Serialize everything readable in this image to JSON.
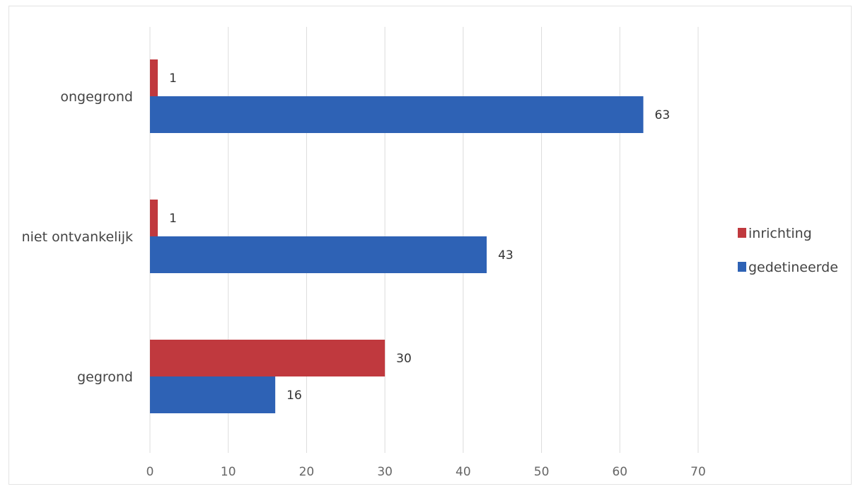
{
  "chart_data": {
    "type": "bar",
    "orientation": "horizontal",
    "categories": [
      "ongegrond",
      "niet ontvankelijk",
      "gegrond"
    ],
    "series": [
      {
        "name": "inrichting",
        "values": [
          1,
          1,
          30
        ],
        "color": "#c0393e"
      },
      {
        "name": "gedetineerde",
        "values": [
          63,
          43,
          16
        ],
        "color": "#2e62b5"
      }
    ],
    "xlim": [
      0,
      70
    ],
    "xticks": [
      0,
      10,
      20,
      30,
      40,
      50,
      60,
      70
    ],
    "title": "",
    "xlabel": "",
    "ylabel": "",
    "grid": true,
    "legend_position": "right",
    "data_labels": true
  }
}
